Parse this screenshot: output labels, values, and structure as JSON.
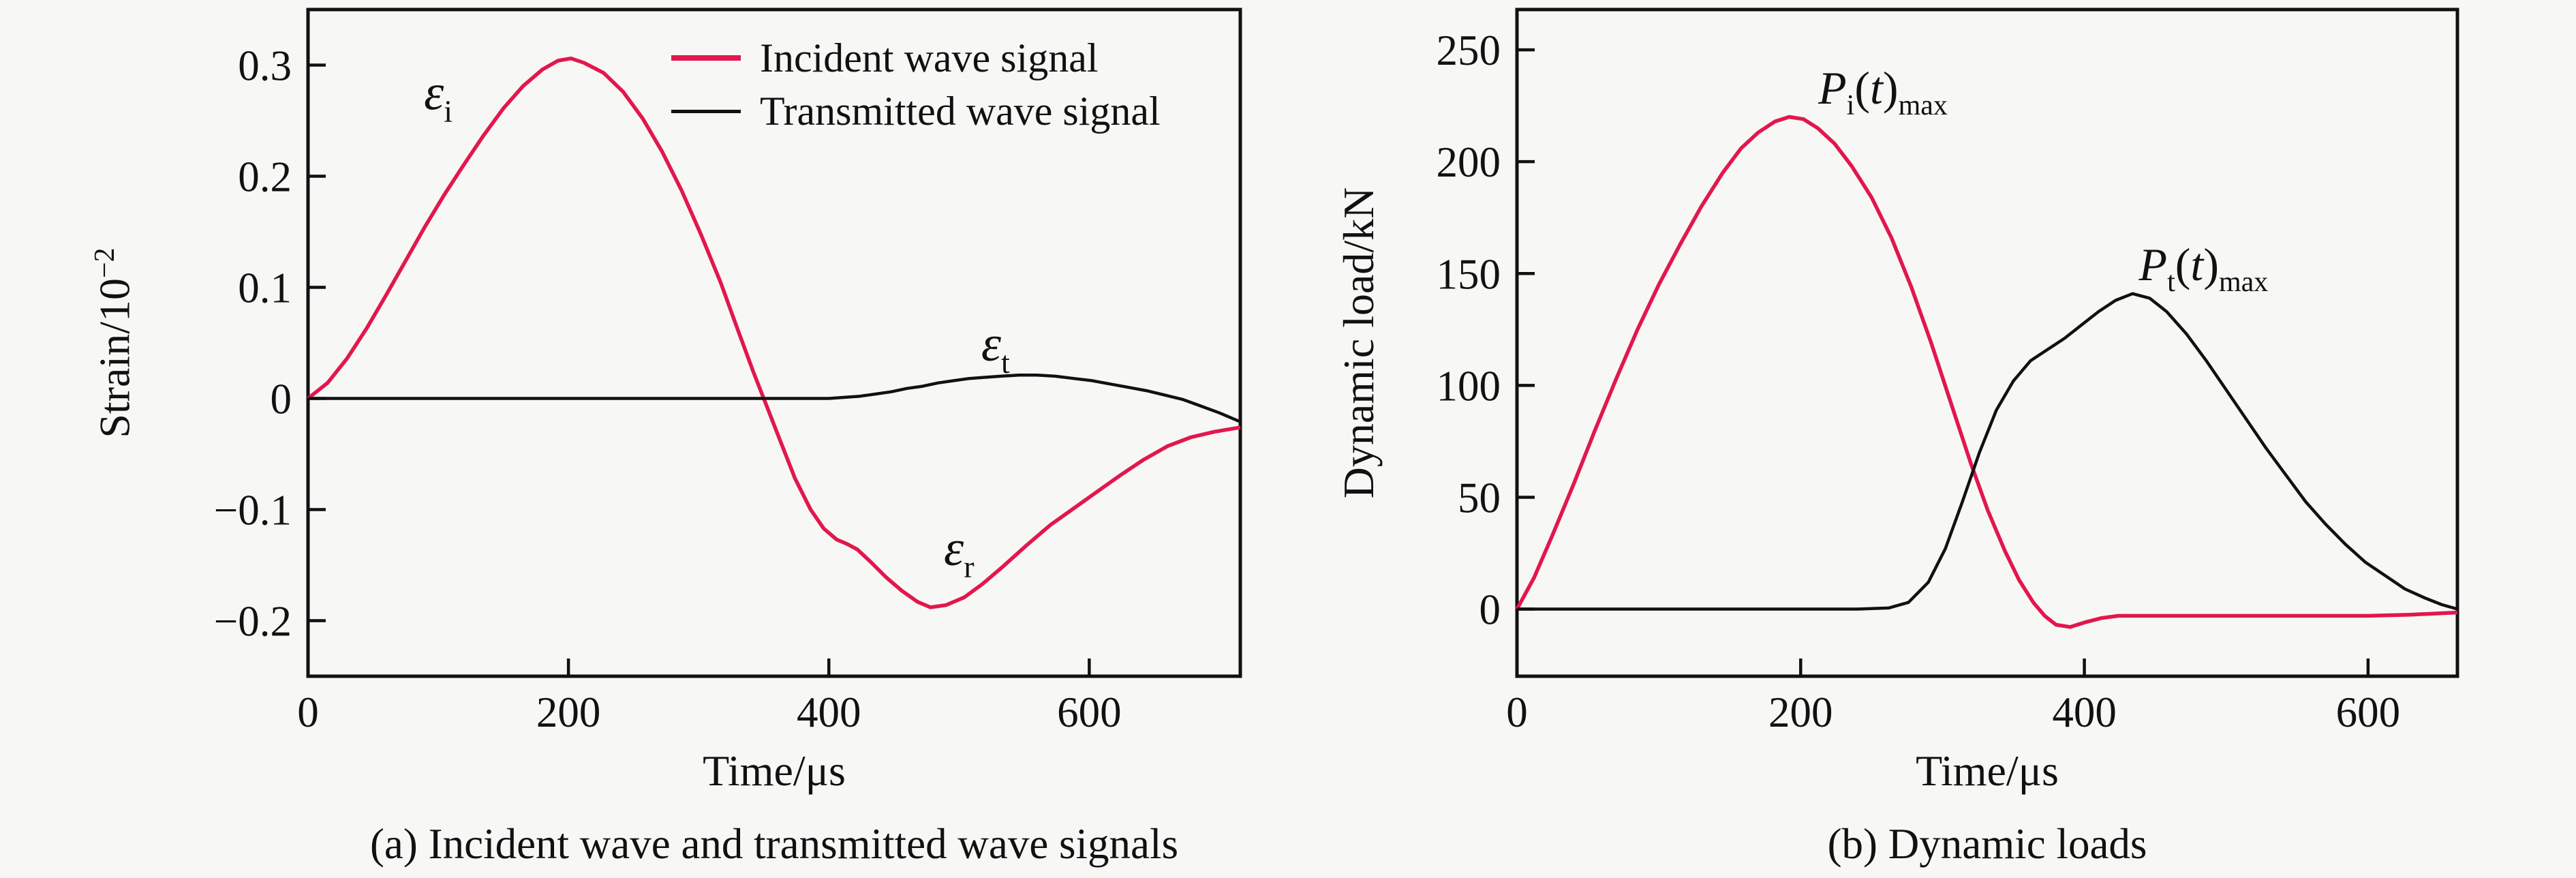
{
  "figure": {
    "background": "#f7f8f5",
    "accent_red": "#e2174d",
    "curve_black": "#111111"
  },
  "chart_data": [
    {
      "type": "line",
      "caption": "(a) Incident wave and transmitted wave signals",
      "xlabel": "Time/μs",
      "ylabel": "Strain/10⁻²",
      "ylabel_parts": {
        "pre": "Strain/10",
        "sup": "−2"
      },
      "xlim": [
        0,
        716
      ],
      "ylim": [
        -0.25,
        0.35
      ],
      "grid": false,
      "xticks": [
        0,
        200,
        400,
        600
      ],
      "xtick_labels": [
        "0",
        "200",
        "400",
        "600"
      ],
      "yticks": [
        0.3,
        0.2,
        0.1,
        0,
        -0.1,
        -0.2
      ],
      "ytick_labels": [
        "0.3",
        "0.2",
        "0.1",
        "0",
        "−0.1",
        "−0.2"
      ],
      "legend": [
        {
          "key": "incident-wave",
          "label": "Incident wave signal",
          "color": "#e2174d"
        },
        {
          "key": "transmitted-wave",
          "label": "Transmitted wave signal",
          "color": "#111111"
        }
      ],
      "series": [
        {
          "key": "incident-wave",
          "name": "Incident wave signal",
          "color": "#e2174d",
          "width": 5.5,
          "points": [
            [
              0,
              0
            ],
            [
              15,
              0.014
            ],
            [
              30,
              0.036
            ],
            [
              45,
              0.063
            ],
            [
              60,
              0.093
            ],
            [
              75,
              0.124
            ],
            [
              90,
              0.155
            ],
            [
              105,
              0.184
            ],
            [
              120,
              0.211
            ],
            [
              135,
              0.237
            ],
            [
              150,
              0.261
            ],
            [
              165,
              0.281
            ],
            [
              180,
              0.296
            ],
            [
              192,
              0.304
            ],
            [
              202,
              0.306
            ],
            [
              212,
              0.302
            ],
            [
              227,
              0.293
            ],
            [
              242,
              0.276
            ],
            [
              257,
              0.252
            ],
            [
              272,
              0.222
            ],
            [
              287,
              0.187
            ],
            [
              302,
              0.147
            ],
            [
              317,
              0.104
            ],
            [
              330,
              0.062
            ],
            [
              342,
              0.024
            ],
            [
              352,
              -0.006
            ],
            [
              362,
              -0.036
            ],
            [
              374,
              -0.072
            ],
            [
              386,
              -0.1
            ],
            [
              396,
              -0.117
            ],
            [
              406,
              -0.127
            ],
            [
              414,
              -0.131
            ],
            [
              422,
              -0.136
            ],
            [
              432,
              -0.147
            ],
            [
              444,
              -0.161
            ],
            [
              456,
              -0.173
            ],
            [
              468,
              -0.183
            ],
            [
              478,
              -0.188
            ],
            [
              490,
              -0.186
            ],
            [
              504,
              -0.179
            ],
            [
              518,
              -0.167
            ],
            [
              534,
              -0.151
            ],
            [
              552,
              -0.132
            ],
            [
              570,
              -0.114
            ],
            [
              588,
              -0.099
            ],
            [
              606,
              -0.084
            ],
            [
              624,
              -0.069
            ],
            [
              642,
              -0.055
            ],
            [
              660,
              -0.043
            ],
            [
              678,
              -0.035
            ],
            [
              696,
              -0.03
            ],
            [
              716,
              -0.026
            ]
          ]
        },
        {
          "key": "transmitted-wave",
          "name": "Transmitted wave signal",
          "color": "#111111",
          "width": 4.5,
          "points": [
            [
              0,
              0
            ],
            [
              60,
              0
            ],
            [
              120,
              0
            ],
            [
              180,
              0
            ],
            [
              240,
              0
            ],
            [
              300,
              0
            ],
            [
              360,
              0
            ],
            [
              400,
              0
            ],
            [
              412,
              0.001
            ],
            [
              424,
              0.002
            ],
            [
              436,
              0.004
            ],
            [
              448,
              0.006
            ],
            [
              460,
              0.009
            ],
            [
              472,
              0.011
            ],
            [
              484,
              0.014
            ],
            [
              496,
              0.016
            ],
            [
              508,
              0.018
            ],
            [
              520,
              0.019
            ],
            [
              532,
              0.02
            ],
            [
              546,
              0.021
            ],
            [
              560,
              0.021
            ],
            [
              574,
              0.02
            ],
            [
              588,
              0.018
            ],
            [
              602,
              0.016
            ],
            [
              616,
              0.013
            ],
            [
              630,
              0.01
            ],
            [
              644,
              0.007
            ],
            [
              658,
              0.003
            ],
            [
              672,
              -0.001
            ],
            [
              686,
              -0.007
            ],
            [
              700,
              -0.013
            ],
            [
              716,
              -0.021
            ]
          ]
        }
      ],
      "annotations": [
        {
          "key": "epsilon-i-label",
          "sym": "ε",
          "sub": "i",
          "x": 100,
          "y": 0.26
        },
        {
          "key": "epsilon-t-label",
          "sym": "ε",
          "sub": "t",
          "x": 528,
          "y": 0.034
        },
        {
          "key": "epsilon-r-label",
          "sym": "ε",
          "sub": "r",
          "x": 500,
          "y": -0.15
        }
      ]
    },
    {
      "type": "line",
      "caption": "(b) Dynamic loads",
      "xlabel": "Time/μs",
      "ylabel": "Dynamic load/kN",
      "xlim": [
        0,
        663
      ],
      "ylim": [
        -30,
        268
      ],
      "grid": false,
      "xticks": [
        0,
        200,
        400,
        600
      ],
      "xtick_labels": [
        "0",
        "200",
        "400",
        "600"
      ],
      "yticks": [
        250,
        200,
        150,
        100,
        50,
        0
      ],
      "ytick_labels": [
        "250",
        "200",
        "150",
        "100",
        "50",
        "0"
      ],
      "legend": [],
      "series": [
        {
          "key": "incident-load",
          "name": "Pi(t)max",
          "color": "#e2174d",
          "width": 5.5,
          "points": [
            [
              0,
              0
            ],
            [
              12,
              14
            ],
            [
              25,
              33
            ],
            [
              40,
              56
            ],
            [
              55,
              80
            ],
            [
              70,
              103
            ],
            [
              85,
              125
            ],
            [
              100,
              145
            ],
            [
              115,
              163
            ],
            [
              130,
              180
            ],
            [
              145,
              195
            ],
            [
              158,
              206
            ],
            [
              170,
              213
            ],
            [
              182,
              218
            ],
            [
              192,
              220
            ],
            [
              202,
              219
            ],
            [
              212,
              215
            ],
            [
              224,
              208
            ],
            [
              236,
              198
            ],
            [
              250,
              184
            ],
            [
              264,
              166
            ],
            [
              278,
              144
            ],
            [
              292,
              119
            ],
            [
              306,
              92
            ],
            [
              320,
              65
            ],
            [
              332,
              44
            ],
            [
              344,
              26
            ],
            [
              354,
              13
            ],
            [
              364,
              3
            ],
            [
              372,
              -3
            ],
            [
              380,
              -7
            ],
            [
              390,
              -8
            ],
            [
              400,
              -6
            ],
            [
              412,
              -4
            ],
            [
              424,
              -3
            ],
            [
              450,
              -3
            ],
            [
              500,
              -3
            ],
            [
              550,
              -3
            ],
            [
              600,
              -3
            ],
            [
              630,
              -2.5
            ],
            [
              663,
              -1.5
            ]
          ]
        },
        {
          "key": "transmitted-load",
          "name": "Pt(t)max",
          "color": "#111111",
          "width": 4.5,
          "points": [
            [
              0,
              0
            ],
            [
              60,
              0
            ],
            [
              120,
              0
            ],
            [
              180,
              0
            ],
            [
              240,
              0
            ],
            [
              262,
              0.5
            ],
            [
              276,
              3
            ],
            [
              290,
              12
            ],
            [
              302,
              27
            ],
            [
              314,
              48
            ],
            [
              326,
              70
            ],
            [
              338,
              89
            ],
            [
              350,
              102
            ],
            [
              362,
              111
            ],
            [
              374,
              116
            ],
            [
              386,
              121
            ],
            [
              398,
              127
            ],
            [
              410,
              133
            ],
            [
              422,
              138
            ],
            [
              434,
              141
            ],
            [
              446,
              139
            ],
            [
              458,
              133
            ],
            [
              472,
              123
            ],
            [
              486,
              111
            ],
            [
              500,
              98
            ],
            [
              514,
              85
            ],
            [
              528,
              72
            ],
            [
              542,
              60
            ],
            [
              556,
              48
            ],
            [
              570,
              38
            ],
            [
              584,
              29
            ],
            [
              598,
              21
            ],
            [
              612,
              15
            ],
            [
              626,
              9
            ],
            [
              640,
              5
            ],
            [
              652,
              2
            ],
            [
              663,
              0
            ]
          ]
        }
      ],
      "annotations": [
        {
          "key": "pi-max-label",
          "sym": "P",
          "sub": "i",
          "tail_open": "(",
          "tail_var": "t",
          "tail_close": ")",
          "max": "max",
          "x": 258,
          "y": 226
        },
        {
          "key": "pt-max-label",
          "sym": "P",
          "sub": "t",
          "tail_open": "(",
          "tail_var": "t",
          "tail_close": ")",
          "max": "max",
          "x": 484,
          "y": 147
        }
      ]
    }
  ]
}
